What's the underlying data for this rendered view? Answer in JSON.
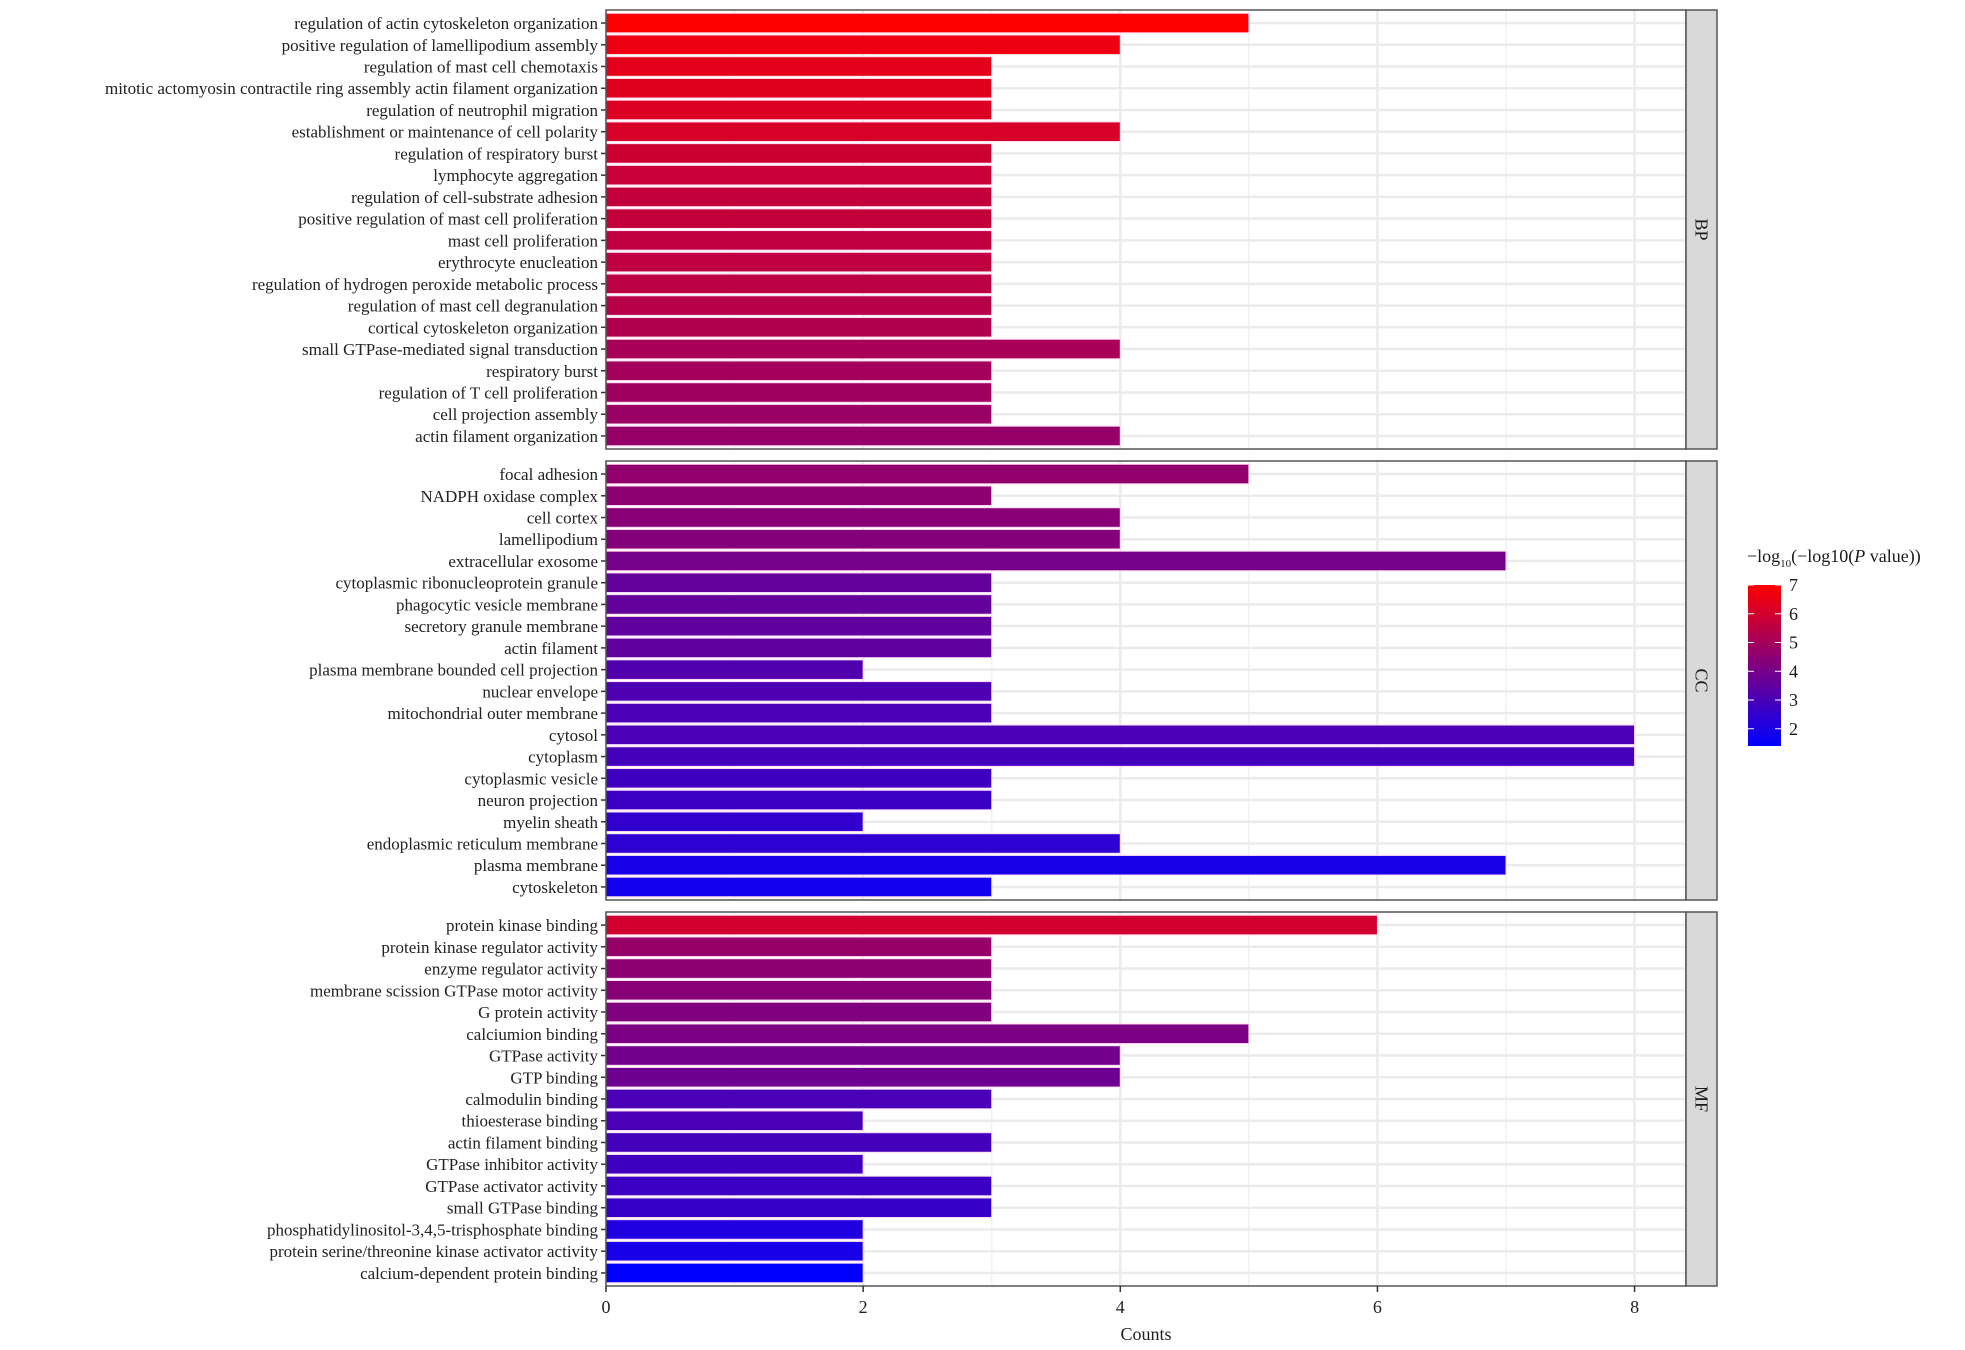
{
  "chart_data": {
    "type": "bar",
    "orientation": "horizontal",
    "xlabel": "Counts",
    "ylabel": "",
    "xlim": [
      0,
      8.4
    ],
    "x_ticks": [
      0,
      2,
      4,
      6,
      8
    ],
    "grid": true,
    "legend": {
      "title_prefix": "−log",
      "title_subscript": "10",
      "title_main": "(−log10(",
      "title_italic": "P",
      "title_suffix": " value))",
      "type": "colorbar",
      "placement": "right",
      "range": [
        1.4,
        7.0
      ],
      "ticks": [
        2,
        3,
        4,
        5,
        6,
        7
      ],
      "low_color": "#0000FF",
      "high_color": "#FF0000"
    },
    "panels": [
      {
        "name": "BP",
        "categories": [
          "regulation of actin cytoskeleton organization",
          "positive regulation of lamellipodium assembly",
          "regulation of mast cell chemotaxis",
          "mitotic actomyosin contractile ring assembly actin filament organization",
          "regulation of neutrophil migration",
          "establishment or maintenance of cell polarity",
          "regulation of respiratory burst",
          "lymphocyte aggregation",
          "regulation of cell-substrate adhesion",
          "positive regulation of mast cell proliferation",
          "mast cell proliferation",
          "erythrocyte enucleation",
          "regulation of hydrogen peroxide metabolic process",
          "regulation of mast cell degranulation",
          "cortical cytoskeleton organization",
          "small GTPase-mediated signal transduction",
          "respiratory burst",
          "regulation of T cell proliferation",
          "cell projection assembly",
          "actin filament organization"
        ],
        "counts": [
          5,
          4,
          3,
          3,
          3,
          4,
          3,
          3,
          3,
          3,
          3,
          3,
          3,
          3,
          3,
          4,
          3,
          3,
          3,
          4
        ],
        "color_values": [
          7.0,
          6.6,
          6.4,
          6.3,
          6.2,
          6.1,
          5.9,
          5.8,
          5.7,
          5.7,
          5.6,
          5.6,
          5.5,
          5.4,
          5.3,
          5.1,
          5.0,
          4.9,
          4.8,
          4.7
        ]
      },
      {
        "name": "CC",
        "categories": [
          "focal adhesion",
          "NADPH oxidase complex",
          "cell cortex",
          "lamellipodium",
          "extracellular exosome",
          "cytoplasmic ribonucleoprotein granule",
          "phagocytic vesicle membrane",
          "secretory granule membrane",
          "actin filament",
          "plasma membrane bounded cell projection",
          "nuclear envelope",
          "mitochondrial outer membrane",
          "cytosol",
          "cytoplasm",
          "cytoplasmic vesicle",
          "neuron projection",
          "myelin sheath",
          "endoplasmic reticulum membrane",
          "plasma membrane",
          "cytoskeleton"
        ],
        "counts": [
          5,
          3,
          4,
          4,
          7,
          3,
          3,
          3,
          3,
          2,
          3,
          3,
          8,
          8,
          3,
          3,
          2,
          4,
          7,
          3
        ],
        "color_values": [
          4.6,
          4.5,
          4.4,
          4.3,
          4.0,
          3.6,
          3.6,
          3.5,
          3.5,
          3.2,
          3.1,
          3.0,
          3.0,
          2.9,
          2.8,
          2.7,
          2.5,
          2.4,
          1.9,
          1.8
        ]
      },
      {
        "name": "MF",
        "categories": [
          "protein kinase binding",
          "protein kinase regulator activity",
          "enzyme regulator activity",
          "membrane scission GTPase motor activity",
          "G protein activity",
          "calciumion binding",
          "GTPase activity",
          "GTP binding",
          "calmodulin binding",
          "thioesterase binding",
          "actin filament binding",
          "GTPase inhibitor activity",
          "GTPase activator activity",
          "small GTPase binding",
          "phosphatidylinositol-3,4,5-trisphosphate binding",
          "protein serine/threonine kinase activator activity",
          "calcium-dependent protein binding"
        ],
        "counts": [
          6,
          3,
          3,
          3,
          3,
          5,
          4,
          4,
          3,
          2,
          3,
          2,
          3,
          3,
          2,
          2,
          2
        ],
        "color_values": [
          6.0,
          4.7,
          4.5,
          4.4,
          4.2,
          4.1,
          3.9,
          3.8,
          3.0,
          3.0,
          2.9,
          2.8,
          2.7,
          2.6,
          2.1,
          1.9,
          1.4
        ]
      }
    ]
  }
}
